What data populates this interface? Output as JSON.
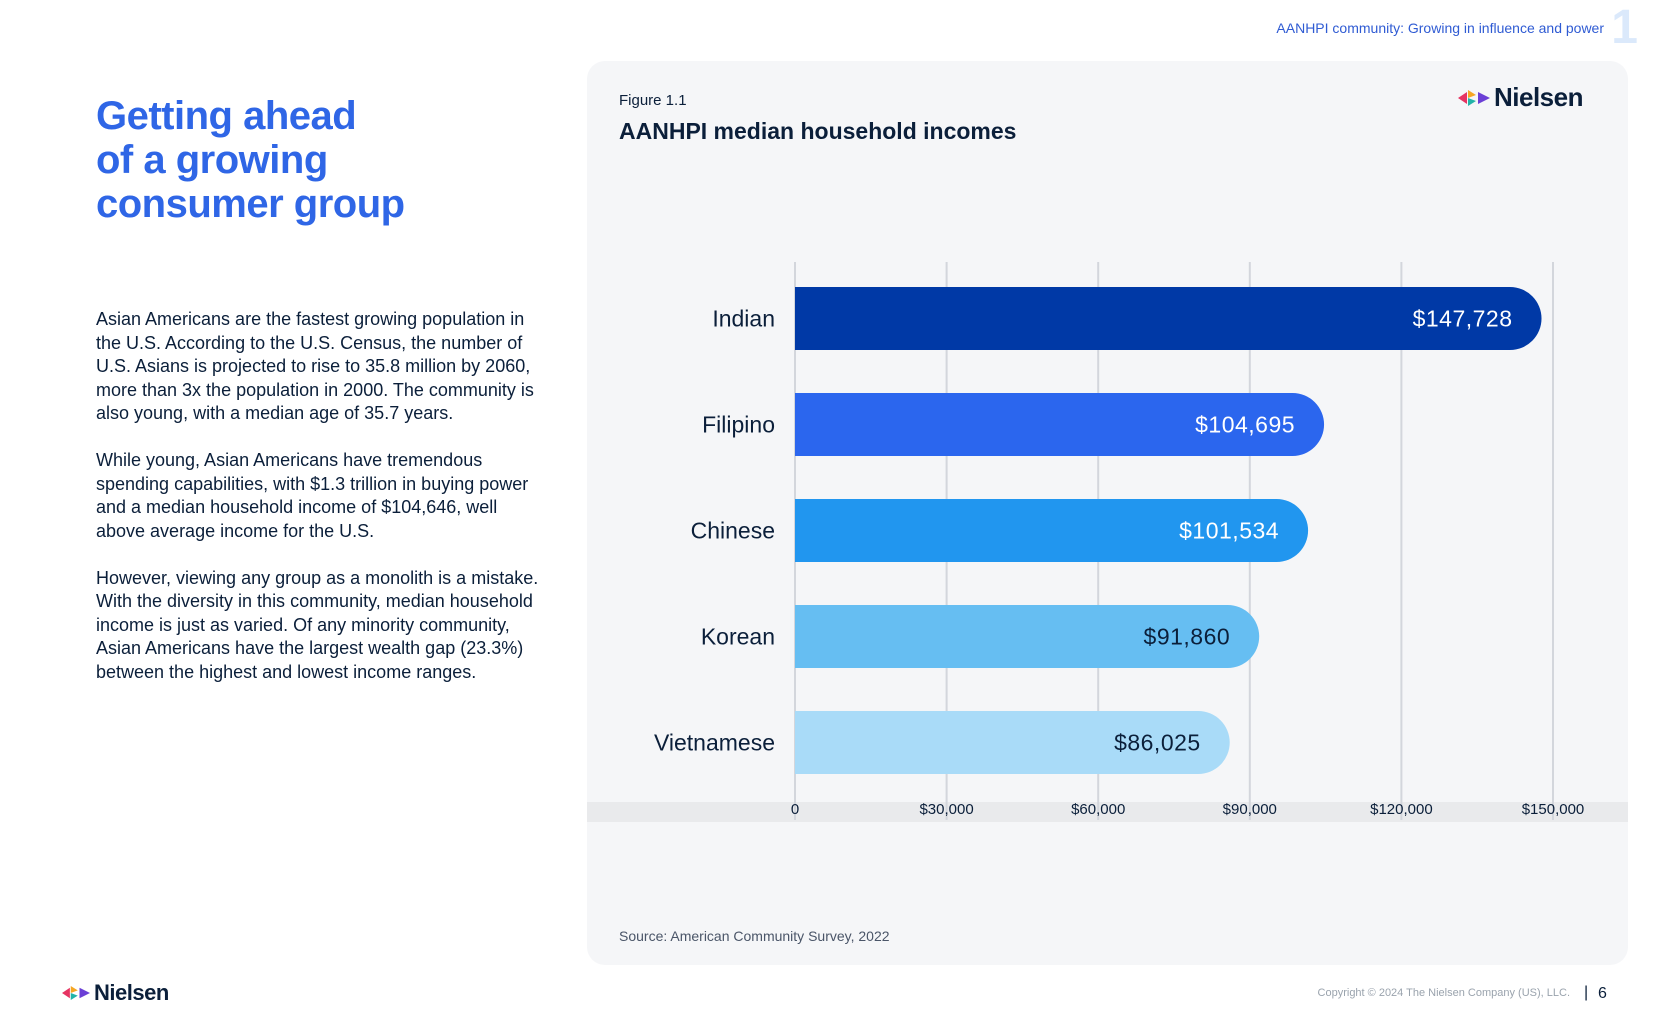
{
  "header": {
    "section_title": "AANHPI community: Growing in influence and power",
    "chapter_number": "1"
  },
  "headline": {
    "line1": "Getting ahead",
    "line2": "of a growing",
    "line3": "consumer group"
  },
  "body": {
    "p1": "Asian Americans are the fastest growing population in the U.S. According to the U.S. Census, the number of U.S. Asians is projected to rise to 35.8 million by 2060, more than 3x the population in 2000. The community is also young, with a median age of 35.7 years.",
    "p2": "While young, Asian Americans have tremendous spending capabilities, with $1.3 trillion in buying power and a median household income of $104,646, well above average income for the U.S.",
    "p3": "However, viewing any group as a monolith is a mistake. With the diversity in this community, median household income is just as varied. Of any minority community, Asian Americans have the largest wealth gap (23.3%) between the highest and lowest income ranges."
  },
  "figure": {
    "label": "Figure 1.1",
    "title": "AANHPI median household incomes",
    "source": "Source: American Community Survey, 2022"
  },
  "brand": {
    "logo_text": "Nielsen"
  },
  "footer": {
    "copyright": "Copyright © 2024 The Nielsen Company (US), LLC.",
    "separator": "|",
    "page_number": "6"
  },
  "colors": {
    "headline": "#2f66e6",
    "bars": [
      "#0039a6",
      "#2b66ee",
      "#2196ef",
      "#66bef2",
      "#a9dbf8"
    ],
    "bar_label_colors": [
      "#ffffff",
      "#ffffff",
      "#ffffff",
      "#0b1f3a",
      "#0b1f3a"
    ]
  },
  "chart_data": {
    "type": "bar",
    "orientation": "horizontal",
    "title": "AANHPI median household incomes",
    "categories": [
      "Indian",
      "Filipino",
      "Chinese",
      "Korean",
      "Vietnamese"
    ],
    "values": [
      147728,
      104695,
      101534,
      91860,
      86025
    ],
    "value_labels": [
      "$147,728",
      "$104,695",
      "$101,534",
      "$91,860",
      "$86,025"
    ],
    "xlim": [
      0,
      150000
    ],
    "xticks": [
      0,
      30000,
      60000,
      90000,
      120000,
      150000
    ],
    "xtick_labels": [
      "0",
      "$30,000",
      "$60,000",
      "$90,000",
      "$120,000",
      "$150,000"
    ],
    "grid": true,
    "legend": "none"
  }
}
